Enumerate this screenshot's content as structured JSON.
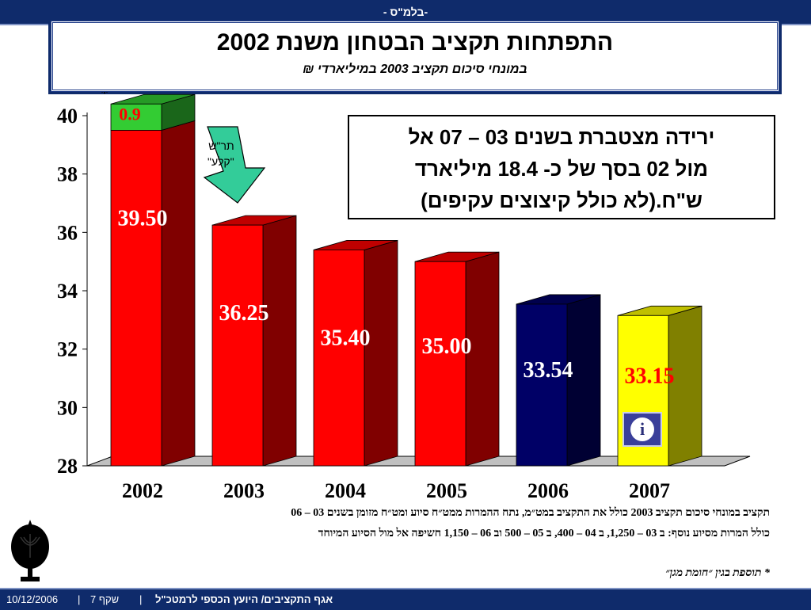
{
  "header": {
    "top_text": "- בלמ\"ס-"
  },
  "title": {
    "main": "התפתחות תקציב הבטחון משנת 2002",
    "sub": "במונחי סיכום תקציב   2003   במיליארדי ₪"
  },
  "callout": {
    "lines": [
      "ירידה מצטברת בשנים 03 – 07 אל",
      "מול 02 בסך של כ- 18.4 מיליארד",
      "ש\"ח.(לא כולל קיצוצים עקיפים)"
    ]
  },
  "arrow": {
    "label_line1": "תר\"ש",
    "label_line2": "\"קלע\""
  },
  "chart_data": {
    "type": "bar",
    "categories": [
      "2002",
      "2003",
      "2004",
      "2005",
      "2006",
      "2007"
    ],
    "values": [
      39.5,
      36.25,
      35.4,
      35.0,
      33.54,
      33.15
    ],
    "value_labels": [
      "39.50",
      "36.25",
      "35.40",
      "35.00",
      "33.54",
      "33.15"
    ],
    "stacked_extra": {
      "category": "2002",
      "value": 0.9,
      "label": "0.9",
      "marker": "*",
      "color": "#33cc33"
    },
    "bar_colors": [
      "#ff0000",
      "#ff0000",
      "#ff0000",
      "#ff0000",
      "#000066",
      "#ffff00"
    ],
    "label_colors": [
      "#ffffff",
      "#ffffff",
      "#ffffff",
      "#ffffff",
      "#ffffff",
      "#ff0000"
    ],
    "ylim": [
      28,
      40
    ],
    "yticks": [
      "28",
      "30",
      "32",
      "34",
      "36",
      "38",
      "40"
    ],
    "grid": false,
    "style": "3d"
  },
  "notes": {
    "line1": "תקציב במונחי סיכום תקציב 2003 כולל את התקציב במט״מ, נתח ההמרות ממט״ח סיוע ומט״ח מזומן בשנים 03 – 06",
    "line2": "כולל המרות מסיוע נוסף: ב 03 – 1,250, ב 04 – 400, ב 05 – 500 וב 06 – 1,150 חשיפה אל מול הסיוע המיוחד",
    "footnote": "* תוספת בגין ״חומת מגן״"
  },
  "footer": {
    "date": "10/12/2006",
    "slide": "שקף  7",
    "department": "אגף התקציבים/ היועץ הכספי לרמטכ\"ל"
  },
  "icons": {
    "info": "info-icon",
    "emblem": "menorah-emblem-icon"
  }
}
